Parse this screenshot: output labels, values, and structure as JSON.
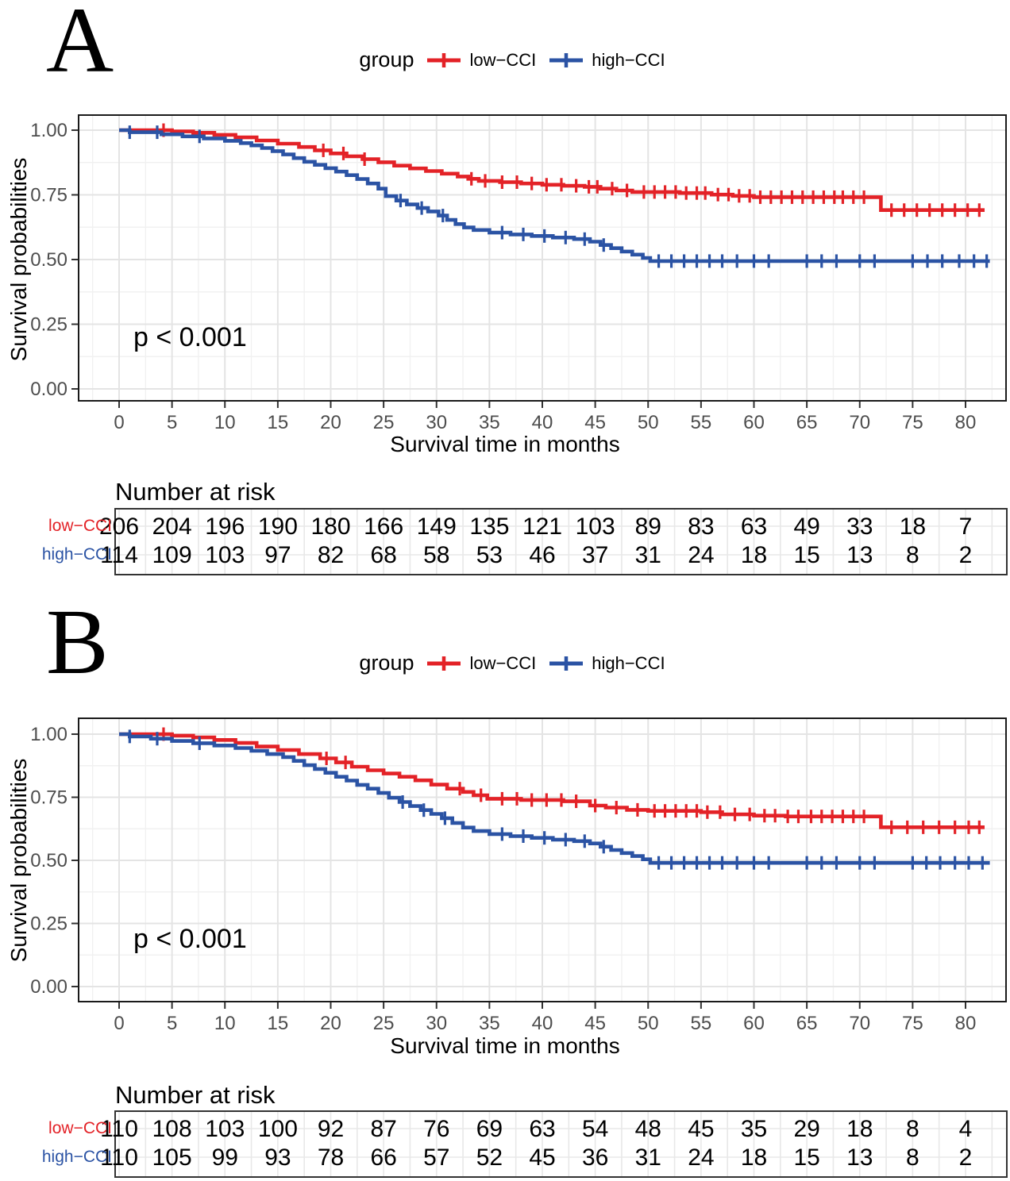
{
  "colors": {
    "low": "#E32227",
    "high": "#2B53A4",
    "tick_label": "#4D4D4D",
    "grid_major": "#E4E4E4",
    "grid_minor": "#F1F1F1",
    "panel_border": "#1A1A1A",
    "risk_grid": "#E8E8E8"
  },
  "chart_data": [
    {
      "panel_label": "A",
      "type": "line",
      "subtype": "kaplan-meier-step",
      "legend_title": "group",
      "xlabel": "Survival time in months",
      "ylabel": "Survival probabilities",
      "p_label": "p < 0.001",
      "xticks": [
        0,
        5,
        10,
        15,
        20,
        25,
        30,
        35,
        40,
        45,
        50,
        55,
        60,
        65,
        70,
        75,
        80
      ],
      "ytick_labels": [
        "0.00",
        "0.25",
        "0.50",
        "0.75",
        "1.00"
      ],
      "ytick_values": [
        0,
        0.25,
        0.5,
        0.75,
        1.0
      ],
      "xlim": [
        -4,
        84
      ],
      "ylim": [
        0,
        1.06
      ],
      "grid": true,
      "legend_position": "top",
      "series": [
        {
          "name": "low−CCI",
          "color_key": "low",
          "steps": [
            [
              0,
              1
            ],
            [
              5,
              0.995
            ],
            [
              7,
              0.99
            ],
            [
              9,
              0.982
            ],
            [
              11,
              0.972
            ],
            [
              13,
              0.96
            ],
            [
              15,
              0.948
            ],
            [
              17,
              0.935
            ],
            [
              18.5,
              0.922
            ],
            [
              20,
              0.91
            ],
            [
              21.5,
              0.899
            ],
            [
              23,
              0.888
            ],
            [
              24.5,
              0.876
            ],
            [
              26,
              0.863
            ],
            [
              27.5,
              0.852
            ],
            [
              29,
              0.842
            ],
            [
              30.5,
              0.832
            ],
            [
              32,
              0.821
            ],
            [
              33,
              0.812
            ],
            [
              34,
              0.804
            ],
            [
              36,
              0.799
            ],
            [
              38,
              0.794
            ],
            [
              40,
              0.789
            ],
            [
              42,
              0.785
            ],
            [
              44,
              0.781
            ],
            [
              45.5,
              0.774
            ],
            [
              47,
              0.767
            ],
            [
              48.5,
              0.761
            ],
            [
              53,
              0.757
            ],
            [
              56,
              0.751
            ],
            [
              58,
              0.746
            ],
            [
              60,
              0.741
            ],
            [
              72,
              0.691
            ],
            [
              81.8,
              0.691
            ]
          ],
          "censors": [
            4.2,
            19.3,
            21.2,
            23.2,
            33.3,
            34.6,
            36.2,
            37.6,
            39,
            40.4,
            41.8,
            43.2,
            44.4,
            45.2,
            46.6,
            48,
            49.6,
            50.6,
            51.6,
            52.6,
            53.6,
            54.6,
            55.4,
            56.6,
            57.6,
            58.6,
            59.6,
            60.6,
            61.6,
            62.6,
            63.6,
            64.6,
            65.6,
            66.6,
            67.6,
            68.4,
            69.4,
            70.4,
            73,
            74.2,
            75.4,
            76.6,
            77.8,
            79,
            80.2,
            81.3
          ]
        },
        {
          "name": "high−CCI",
          "color_key": "high",
          "steps": [
            [
              0,
              1
            ],
            [
              1,
              0.992
            ],
            [
              4,
              0.984
            ],
            [
              6,
              0.976
            ],
            [
              8,
              0.968
            ],
            [
              10,
              0.959
            ],
            [
              11.5,
              0.95
            ],
            [
              12.5,
              0.941
            ],
            [
              13.5,
              0.931
            ],
            [
              14.5,
              0.919
            ],
            [
              15.5,
              0.906
            ],
            [
              16.5,
              0.892
            ],
            [
              17.5,
              0.878
            ],
            [
              18.5,
              0.866
            ],
            [
              19.5,
              0.853
            ],
            [
              20.5,
              0.84
            ],
            [
              21.5,
              0.826
            ],
            [
              22.5,
              0.811
            ],
            [
              23.5,
              0.794
            ],
            [
              24.5,
              0.774
            ],
            [
              25.2,
              0.745
            ],
            [
              26.2,
              0.728
            ],
            [
              27.2,
              0.713
            ],
            [
              28.2,
              0.699
            ],
            [
              29.2,
              0.686
            ],
            [
              30.2,
              0.67
            ],
            [
              31,
              0.653
            ],
            [
              31.8,
              0.637
            ],
            [
              32.6,
              0.624
            ],
            [
              33.5,
              0.614
            ],
            [
              35,
              0.604
            ],
            [
              37,
              0.597
            ],
            [
              39,
              0.591
            ],
            [
              41,
              0.585
            ],
            [
              43,
              0.579
            ],
            [
              44.5,
              0.569
            ],
            [
              45.5,
              0.556
            ],
            [
              46.5,
              0.544
            ],
            [
              47.5,
              0.531
            ],
            [
              48.5,
              0.519
            ],
            [
              49.5,
              0.506
            ],
            [
              50.2,
              0.494
            ],
            [
              82.3,
              0.494
            ]
          ],
          "censors": [
            1,
            3.6,
            7.6,
            26.6,
            28.6,
            30.6,
            36.2,
            38.2,
            40.2,
            42.2,
            44,
            45.8,
            51,
            52.2,
            53.4,
            54.6,
            55.8,
            57,
            58.4,
            60,
            61.4,
            65,
            66.4,
            67.8,
            70,
            71.4,
            75,
            76.4,
            77.8,
            79.4,
            80.8,
            82
          ]
        }
      ],
      "risk_table": {
        "title": "Number at risk",
        "times": [
          0,
          5,
          10,
          15,
          20,
          25,
          30,
          35,
          40,
          45,
          50,
          55,
          60,
          65,
          70,
          75,
          80
        ],
        "rows": [
          {
            "label": "low−CCI",
            "color_key": "low",
            "values": [
              206,
              204,
              196,
              190,
              180,
              166,
              149,
              135,
              121,
              103,
              89,
              83,
              63,
              49,
              33,
              18,
              7
            ]
          },
          {
            "label": "high−CCI",
            "color_key": "high",
            "values": [
              114,
              109,
              103,
              97,
              82,
              68,
              58,
              53,
              46,
              37,
              31,
              24,
              18,
              15,
              13,
              8,
              2
            ]
          }
        ]
      }
    },
    {
      "panel_label": "B",
      "type": "line",
      "subtype": "kaplan-meier-step",
      "legend_title": "group",
      "xlabel": "Survival time in months",
      "ylabel": "Survival probabilities",
      "p_label": "p < 0.001",
      "xticks": [
        0,
        5,
        10,
        15,
        20,
        25,
        30,
        35,
        40,
        45,
        50,
        55,
        60,
        65,
        70,
        75,
        80
      ],
      "ytick_labels": [
        "0.00",
        "0.25",
        "0.50",
        "0.75",
        "1.00"
      ],
      "ytick_values": [
        0,
        0.25,
        0.5,
        0.75,
        1.0
      ],
      "xlim": [
        -4,
        84
      ],
      "ylim": [
        0,
        1.06
      ],
      "grid": true,
      "legend_position": "top",
      "series": [
        {
          "name": "low−CCI",
          "color_key": "low",
          "steps": [
            [
              0,
              1
            ],
            [
              5,
              0.994
            ],
            [
              7,
              0.987
            ],
            [
              9,
              0.977
            ],
            [
              11,
              0.965
            ],
            [
              13,
              0.951
            ],
            [
              15,
              0.937
            ],
            [
              17,
              0.921
            ],
            [
              19,
              0.904
            ],
            [
              20.5,
              0.888
            ],
            [
              22,
              0.871
            ],
            [
              23.5,
              0.857
            ],
            [
              25,
              0.844
            ],
            [
              26.5,
              0.831
            ],
            [
              28,
              0.817
            ],
            [
              29.5,
              0.8
            ],
            [
              31,
              0.784
            ],
            [
              32.5,
              0.771
            ],
            [
              33.5,
              0.758
            ],
            [
              34.8,
              0.744
            ],
            [
              38,
              0.739
            ],
            [
              42,
              0.734
            ],
            [
              44.5,
              0.717
            ],
            [
              46,
              0.709
            ],
            [
              48,
              0.7
            ],
            [
              50,
              0.696
            ],
            [
              55,
              0.691
            ],
            [
              57,
              0.682
            ],
            [
              60,
              0.677
            ],
            [
              63,
              0.674
            ],
            [
              72,
              0.631
            ],
            [
              81.8,
              0.631
            ]
          ],
          "censors": [
            4.2,
            19.6,
            21.4,
            32.2,
            34.2,
            36.2,
            37.6,
            39,
            40.4,
            41.8,
            43.2,
            45,
            47,
            49,
            50.6,
            51.6,
            52.6,
            53.6,
            54.6,
            55.6,
            56.8,
            58.2,
            59.6,
            61,
            62,
            63.2,
            64.2,
            65.4,
            66.4,
            67.4,
            68.4,
            69.4,
            70.4,
            73,
            74.5,
            76,
            77.5,
            79,
            80.3,
            81.3
          ]
        },
        {
          "name": "high−CCI",
          "color_key": "high",
          "steps": [
            [
              0,
              1
            ],
            [
              1,
              0.991
            ],
            [
              3,
              0.982
            ],
            [
              5,
              0.973
            ],
            [
              7,
              0.964
            ],
            [
              9,
              0.955
            ],
            [
              11,
              0.945
            ],
            [
              12.5,
              0.934
            ],
            [
              14,
              0.921
            ],
            [
              15.5,
              0.909
            ],
            [
              16.5,
              0.894
            ],
            [
              17.5,
              0.877
            ],
            [
              18.5,
              0.862
            ],
            [
              19.5,
              0.847
            ],
            [
              20.5,
              0.831
            ],
            [
              21.5,
              0.816
            ],
            [
              22.5,
              0.799
            ],
            [
              23.5,
              0.784
            ],
            [
              24.5,
              0.767
            ],
            [
              25.5,
              0.748
            ],
            [
              26.5,
              0.731
            ],
            [
              27.5,
              0.715
            ],
            [
              28.5,
              0.699
            ],
            [
              29.5,
              0.684
            ],
            [
              30.5,
              0.667
            ],
            [
              31.5,
              0.648
            ],
            [
              32.5,
              0.63
            ],
            [
              33.5,
              0.616
            ],
            [
              35,
              0.604
            ],
            [
              37,
              0.596
            ],
            [
              39,
              0.589
            ],
            [
              41,
              0.582
            ],
            [
              43,
              0.576
            ],
            [
              44.5,
              0.567
            ],
            [
              45.5,
              0.554
            ],
            [
              46.5,
              0.541
            ],
            [
              47.5,
              0.529
            ],
            [
              48.5,
              0.517
            ],
            [
              49.5,
              0.504
            ],
            [
              50.2,
              0.49
            ],
            [
              82.3,
              0.49
            ]
          ],
          "censors": [
            1,
            3.6,
            7.6,
            26.8,
            28.8,
            30.8,
            36.2,
            38.2,
            40.2,
            42.2,
            44,
            45.8,
            51,
            52.2,
            53.4,
            54.6,
            55.8,
            57,
            58.4,
            60,
            61.4,
            65,
            66.4,
            67.8,
            70,
            71.4,
            75,
            76.3,
            77.6,
            79,
            80.3,
            81.6
          ]
        }
      ],
      "risk_table": {
        "title": "Number at risk",
        "times": [
          0,
          5,
          10,
          15,
          20,
          25,
          30,
          35,
          40,
          45,
          50,
          55,
          60,
          65,
          70,
          75,
          80
        ],
        "rows": [
          {
            "label": "low−CCI",
            "color_key": "low",
            "values": [
              110,
              108,
              103,
              100,
              92,
              87,
              76,
              69,
              63,
              54,
              48,
              45,
              35,
              29,
              18,
              8,
              4
            ]
          },
          {
            "label": "high−CCI",
            "color_key": "high",
            "values": [
              110,
              105,
              99,
              93,
              78,
              66,
              57,
              52,
              45,
              36,
              31,
              24,
              18,
              15,
              13,
              8,
              2
            ]
          }
        ]
      }
    }
  ]
}
